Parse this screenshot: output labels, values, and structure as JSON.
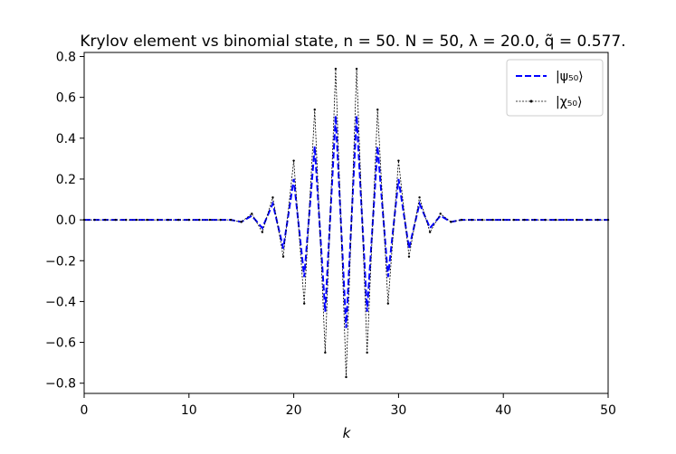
{
  "chart_data": {
    "type": "line",
    "title": "Krylov element vs binomial state, n = 50. N = 50, λ = 20.0, q̃ = 0.577.",
    "xlabel": "k",
    "ylabel": "",
    "xlim": [
      0,
      50
    ],
    "ylim": [
      -0.85,
      0.82
    ],
    "xticks": [
      0,
      10,
      20,
      30,
      40,
      50
    ],
    "yticks": [
      -0.8,
      -0.6,
      -0.4,
      -0.2,
      0.0,
      0.2,
      0.4,
      0.6,
      0.8
    ],
    "grid": false,
    "legend_position": "top-right",
    "x": [
      0,
      1,
      2,
      3,
      4,
      5,
      6,
      7,
      8,
      9,
      10,
      11,
      12,
      13,
      14,
      15,
      16,
      17,
      18,
      19,
      20,
      21,
      22,
      23,
      24,
      25,
      26,
      27,
      28,
      29,
      30,
      31,
      32,
      33,
      34,
      35,
      36,
      37,
      38,
      39,
      40,
      41,
      42,
      43,
      44,
      45,
      46,
      47,
      48,
      49,
      50
    ],
    "series": [
      {
        "name": "|ψ₅₀⟩",
        "color": "#0000ff",
        "style": "dashed",
        "values": [
          0,
          0,
          0,
          0,
          0,
          0,
          0,
          0,
          0,
          0,
          0,
          0,
          0,
          0,
          0,
          -0.01,
          0.02,
          -0.04,
          0.08,
          -0.14,
          0.2,
          -0.28,
          0.36,
          -0.45,
          0.51,
          -0.53,
          0.51,
          -0.45,
          0.36,
          -0.28,
          0.2,
          -0.14,
          0.08,
          -0.04,
          0.02,
          -0.01,
          0,
          0,
          0,
          0,
          0,
          0,
          0,
          0,
          0,
          0,
          0,
          0,
          0,
          0,
          0
        ]
      },
      {
        "name": "|χ₅₀⟩",
        "color": "#000000",
        "style": "dotted-markers",
        "values": [
          0,
          0,
          0,
          0,
          0,
          0,
          0,
          0,
          0,
          0,
          0,
          0,
          0,
          0,
          0,
          -0.01,
          0.03,
          -0.06,
          0.11,
          -0.18,
          0.29,
          -0.41,
          0.54,
          -0.65,
          0.74,
          -0.77,
          0.74,
          -0.65,
          0.54,
          -0.41,
          0.29,
          -0.18,
          0.11,
          -0.06,
          0.03,
          -0.01,
          0,
          0,
          0,
          0,
          0,
          0,
          0,
          0,
          0,
          0,
          0,
          0,
          0,
          0,
          0
        ]
      }
    ]
  }
}
